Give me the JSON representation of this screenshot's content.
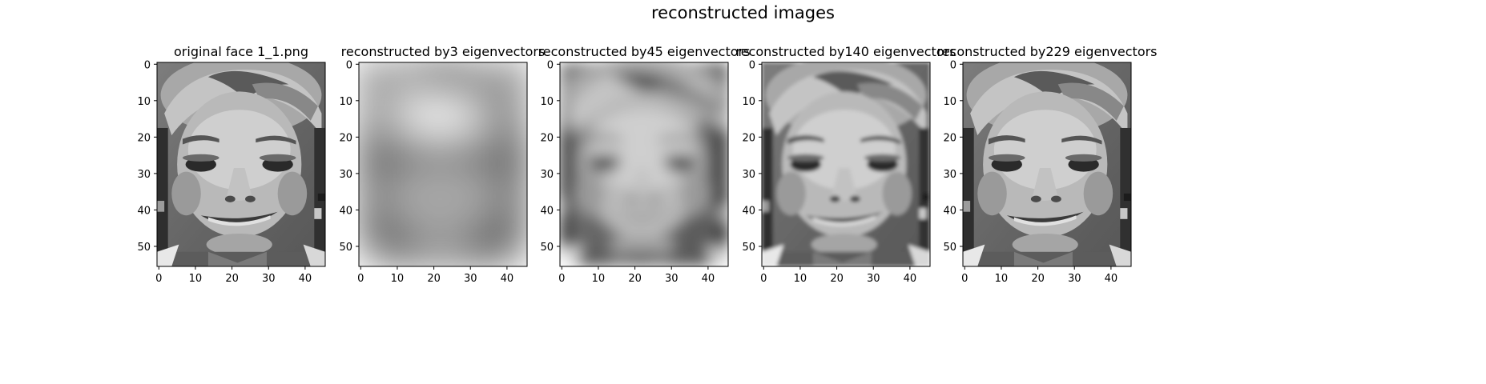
{
  "figure": {
    "suptitle": "reconstructed images"
  },
  "chart_data": [
    {
      "type": "image",
      "title": "original face 1_1.png",
      "image": "original grayscale face",
      "blur_level": 0,
      "xticks": [
        0,
        10,
        20,
        30,
        40
      ],
      "yticks": [
        0,
        10,
        20,
        30,
        40,
        50
      ],
      "xlim": [
        -0.5,
        45.5
      ],
      "ylim": [
        55.5,
        -0.5
      ],
      "colormap": "gray"
    },
    {
      "type": "image",
      "title": "reconstructed by3 eigenvectors",
      "image": "heavily blurred grayscale face",
      "blur_level": 5,
      "xticks": [
        0,
        10,
        20,
        30,
        40
      ],
      "yticks": [
        0,
        10,
        20,
        30,
        40,
        50
      ],
      "xlim": [
        -0.5,
        45.5
      ],
      "ylim": [
        55.5,
        -0.5
      ],
      "colormap": "gray"
    },
    {
      "type": "image",
      "title": "reconstructed by45 eigenvectors",
      "image": "moderately blurred grayscale face",
      "blur_level": 2,
      "xticks": [
        0,
        10,
        20,
        30,
        40
      ],
      "yticks": [
        0,
        10,
        20,
        30,
        40,
        50
      ],
      "xlim": [
        -0.5,
        45.5
      ],
      "ylim": [
        55.5,
        -0.5
      ],
      "colormap": "gray"
    },
    {
      "type": "image",
      "title": "reconstructed by140 eigenvectors",
      "image": "near-original grayscale face",
      "blur_level": 0.5,
      "xticks": [
        0,
        10,
        20,
        30,
        40
      ],
      "yticks": [
        0,
        10,
        20,
        30,
        40,
        50
      ],
      "xlim": [
        -0.5,
        45.5
      ],
      "ylim": [
        55.5,
        -0.5
      ],
      "colormap": "gray"
    },
    {
      "type": "image",
      "title": "reconstructed by229 eigenvectors",
      "image": "near-original grayscale face",
      "blur_level": 0,
      "xticks": [
        0,
        10,
        20,
        30,
        40
      ],
      "yticks": [
        0,
        10,
        20,
        30,
        40,
        50
      ],
      "xlim": [
        -0.5,
        45.5
      ],
      "ylim": [
        55.5,
        -0.5
      ],
      "colormap": "gray"
    }
  ]
}
